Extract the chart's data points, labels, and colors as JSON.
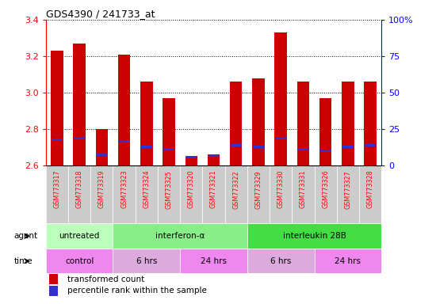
{
  "title": "GDS4390 / 241733_at",
  "samples": [
    "GSM773317",
    "GSM773318",
    "GSM773319",
    "GSM773323",
    "GSM773324",
    "GSM773325",
    "GSM773320",
    "GSM773321",
    "GSM773322",
    "GSM773329",
    "GSM773330",
    "GSM773331",
    "GSM773326",
    "GSM773327",
    "GSM773328"
  ],
  "red_values": [
    3.23,
    3.27,
    2.8,
    3.21,
    3.06,
    2.97,
    2.65,
    2.66,
    3.06,
    3.08,
    3.33,
    3.06,
    2.97,
    3.06,
    3.06
  ],
  "blue_values": [
    2.74,
    2.75,
    2.66,
    2.73,
    2.7,
    2.69,
    2.645,
    2.655,
    2.71,
    2.7,
    2.75,
    2.69,
    2.68,
    2.7,
    2.71
  ],
  "ymin": 2.6,
  "ymax": 3.4,
  "y2min": 0,
  "y2max": 100,
  "yticks": [
    2.6,
    2.8,
    3.0,
    3.2,
    3.4
  ],
  "y2ticks": [
    0,
    25,
    50,
    75,
    100
  ],
  "bar_color": "#cc0000",
  "blue_color": "#3333cc",
  "agent_groups": [
    {
      "label": "untreated",
      "start": 0,
      "end": 3,
      "color": "#bbffbb"
    },
    {
      "label": "interferon-α",
      "start": 3,
      "end": 9,
      "color": "#88ee88"
    },
    {
      "label": "interleukin 28B",
      "start": 9,
      "end": 15,
      "color": "#44dd44"
    }
  ],
  "time_groups": [
    {
      "label": "control",
      "start": 0,
      "end": 3,
      "color": "#ee88ee"
    },
    {
      "label": "6 hrs",
      "start": 3,
      "end": 6,
      "color": "#ddaadd"
    },
    {
      "label": "24 hrs",
      "start": 6,
      "end": 9,
      "color": "#ee88ee"
    },
    {
      "label": "6 hrs",
      "start": 9,
      "end": 12,
      "color": "#ddaadd"
    },
    {
      "label": "24 hrs",
      "start": 12,
      "end": 15,
      "color": "#ee88ee"
    }
  ],
  "agent_label": "agent",
  "time_label": "time",
  "legend_red": "transformed count",
  "legend_blue": "percentile rank within the sample",
  "bar_width": 0.55,
  "tick_bg": "#cccccc"
}
